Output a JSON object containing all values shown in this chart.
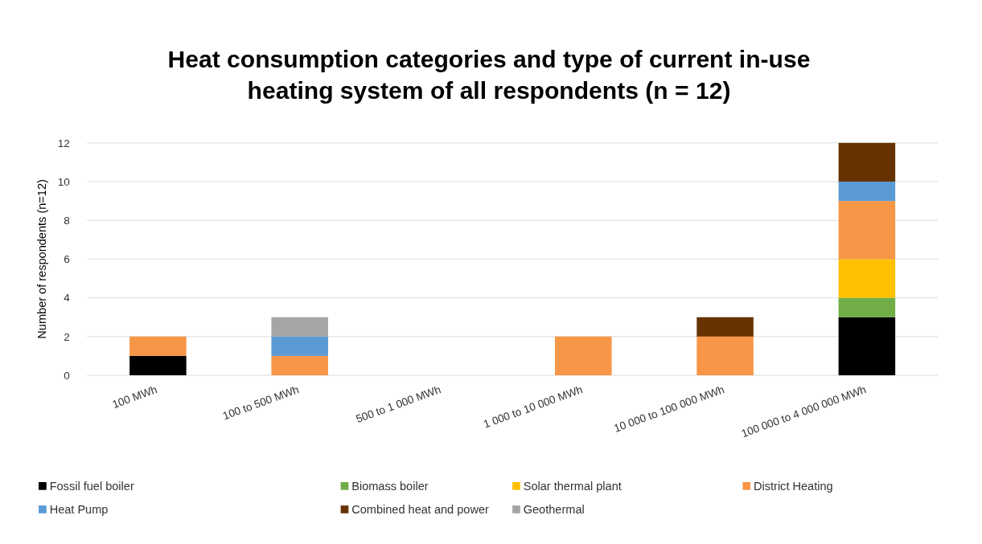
{
  "chart_data": {
    "type": "bar",
    "stacked": true,
    "title": "Heat consumption categories and type of current in-use heating system of all respondents (n = 12)",
    "ylabel": "Number of respondents (n=12)",
    "categories": [
      "100 MWh",
      "100 to 500 MWh",
      "500 to 1 000 MWh",
      "1 000 to 10 000 MWh",
      "10 000 to 100 000 MWh",
      "100 000 to 4 000 000 MWh"
    ],
    "series": [
      {
        "name": "Fossil fuel boiler",
        "color": "#000000",
        "values": [
          1,
          0,
          0,
          0,
          0,
          3
        ]
      },
      {
        "name": "Biomass boiler",
        "color": "#70ad47",
        "values": [
          0,
          0,
          0,
          0,
          0,
          1
        ]
      },
      {
        "name": "Solar thermal plant",
        "color": "#ffc000",
        "values": [
          0,
          0,
          0,
          0,
          0,
          2
        ]
      },
      {
        "name": "District Heating",
        "color": "#f79646",
        "values": [
          1,
          1,
          0,
          2,
          2,
          3
        ]
      },
      {
        "name": "Heat Pump",
        "color": "#5b9bd5",
        "values": [
          0,
          1,
          0,
          0,
          0,
          1
        ]
      },
      {
        "name": "Combined heat and power",
        "color": "#663300",
        "values": [
          0,
          0,
          0,
          0,
          1,
          2
        ]
      },
      {
        "name": "Geothermal",
        "color": "#a5a5a5",
        "values": [
          0,
          1,
          0,
          0,
          0,
          0
        ]
      }
    ],
    "ylim": [
      0,
      12
    ],
    "yticks": [
      0,
      2,
      4,
      6,
      8,
      10,
      12
    ],
    "grid": "y",
    "legend": "bottom"
  }
}
